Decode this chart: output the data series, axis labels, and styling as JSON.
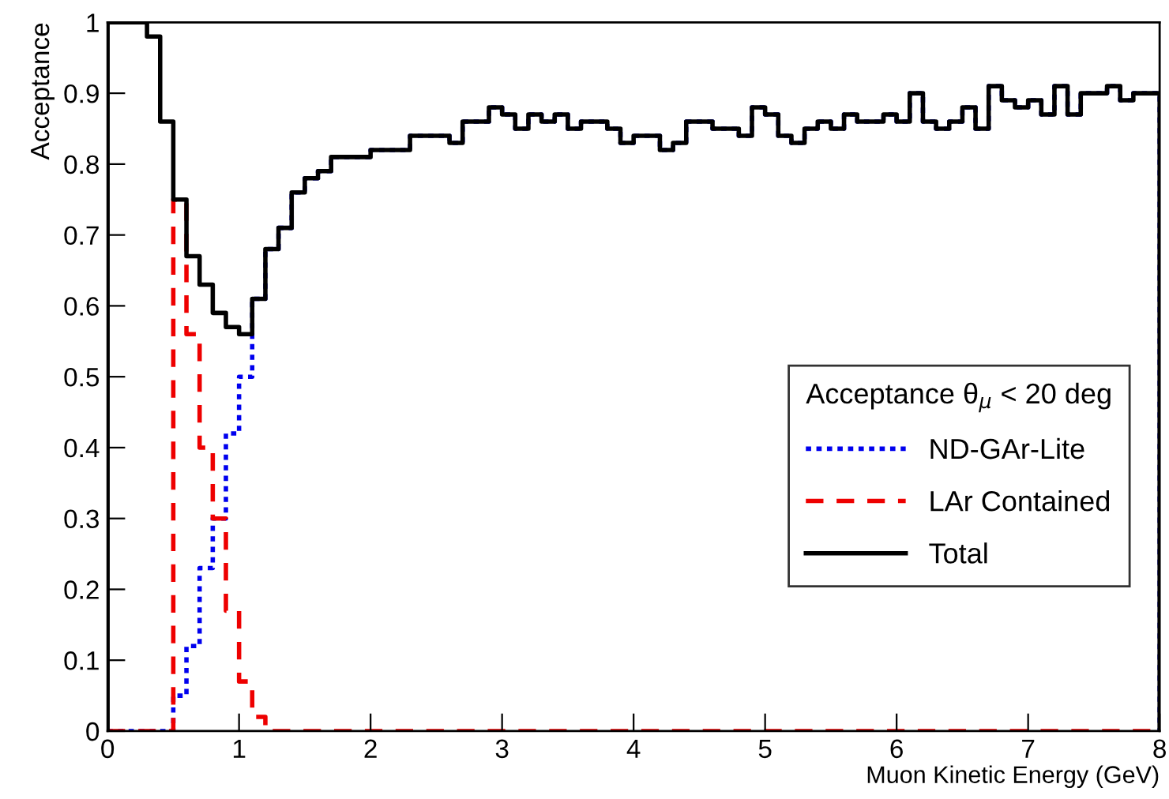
{
  "chart_data": {
    "type": "histogram",
    "xlabel": "Muon Kinetic Energy (GeV)",
    "ylabel": "Acceptance",
    "legend_title": "Acceptance θ$_{μ}$ < 20 deg",
    "bins": [
      0,
      0.1,
      0.2,
      0.3,
      0.4,
      0.5,
      0.6,
      0.7,
      0.8,
      0.9,
      1.0,
      1.1,
      1.2,
      1.3,
      1.4,
      1.5,
      1.6,
      1.7,
      1.8,
      1.9,
      2.0,
      2.1,
      2.2,
      2.3,
      2.4,
      2.5,
      2.6,
      2.7,
      2.8,
      2.9,
      3.0,
      3.1,
      3.2,
      3.3,
      3.4,
      3.5,
      3.6,
      3.7,
      3.8,
      3.9,
      4.0,
      4.1,
      4.2,
      4.3,
      4.4,
      4.5,
      4.6,
      4.7,
      4.8,
      4.9,
      5.0,
      5.1,
      5.2,
      5.3,
      5.4,
      5.5,
      5.6,
      5.7,
      5.8,
      5.9,
      6.0,
      6.1,
      6.2,
      6.3,
      6.4,
      6.5,
      6.6,
      6.7,
      6.8,
      6.9,
      7.0,
      7.1,
      7.2,
      7.3,
      7.4,
      7.5,
      7.6,
      7.7,
      7.8,
      7.9,
      8.0
    ],
    "series": [
      {
        "name": "ND-GAr-Lite",
        "color": "#0000ee",
        "line_style": "dotted",
        "values": [
          0,
          0,
          0,
          0,
          0,
          0.05,
          0.12,
          0.23,
          0.3,
          0.42,
          0.5,
          0.61,
          0.68,
          0.71,
          0.76,
          0.78,
          0.79,
          0.81,
          0.81,
          0.81,
          0.82,
          0.82,
          0.82,
          0.84,
          0.84,
          0.84,
          0.83,
          0.86,
          0.86,
          0.88,
          0.87,
          0.85,
          0.87,
          0.86,
          0.87,
          0.85,
          0.86,
          0.86,
          0.85,
          0.83,
          0.84,
          0.84,
          0.82,
          0.83,
          0.86,
          0.86,
          0.85,
          0.85,
          0.84,
          0.88,
          0.87,
          0.84,
          0.83,
          0.85,
          0.86,
          0.85,
          0.87,
          0.86,
          0.86,
          0.87,
          0.86,
          0.9,
          0.86,
          0.85,
          0.86,
          0.88,
          0.85,
          0.91,
          0.89,
          0.88,
          0.89,
          0.87,
          0.91,
          0.87,
          0.9,
          0.9,
          0.91,
          0.89,
          0.9,
          0.9
        ]
      },
      {
        "name": "LAr Contained",
        "color": "#ee0000",
        "line_style": "dashed",
        "values": [
          0,
          0,
          0,
          0,
          0,
          0.75,
          0.56,
          0.4,
          0.3,
          0.17,
          0.07,
          0.02,
          0,
          0,
          0,
          0,
          0,
          0,
          0,
          0,
          0,
          0,
          0,
          0,
          0,
          0,
          0,
          0,
          0,
          0,
          0,
          0,
          0,
          0,
          0,
          0,
          0,
          0,
          0,
          0,
          0,
          0,
          0,
          0,
          0,
          0,
          0,
          0,
          0,
          0,
          0,
          0,
          0,
          0,
          0,
          0,
          0,
          0,
          0,
          0,
          0,
          0,
          0,
          0,
          0,
          0,
          0,
          0,
          0,
          0,
          0,
          0,
          0,
          0,
          0,
          0,
          0,
          0,
          0,
          0
        ]
      },
      {
        "name": "Total",
        "color": "#000000",
        "line_style": "solid",
        "values": [
          1.0,
          1.0,
          1.0,
          0.98,
          0.86,
          0.75,
          0.67,
          0.63,
          0.59,
          0.57,
          0.56,
          0.61,
          0.68,
          0.71,
          0.76,
          0.78,
          0.79,
          0.81,
          0.81,
          0.81,
          0.82,
          0.82,
          0.82,
          0.84,
          0.84,
          0.84,
          0.83,
          0.86,
          0.86,
          0.88,
          0.87,
          0.85,
          0.87,
          0.86,
          0.87,
          0.85,
          0.86,
          0.86,
          0.85,
          0.83,
          0.84,
          0.84,
          0.82,
          0.83,
          0.86,
          0.86,
          0.85,
          0.85,
          0.84,
          0.88,
          0.87,
          0.84,
          0.83,
          0.85,
          0.86,
          0.85,
          0.87,
          0.86,
          0.86,
          0.87,
          0.86,
          0.9,
          0.86,
          0.85,
          0.86,
          0.88,
          0.85,
          0.91,
          0.89,
          0.88,
          0.89,
          0.87,
          0.91,
          0.87,
          0.9,
          0.9,
          0.91,
          0.89,
          0.9,
          0.9
        ]
      }
    ],
    "xlim": [
      0,
      8
    ],
    "ylim": [
      0,
      1
    ],
    "xticks": [
      0,
      1,
      2,
      3,
      4,
      5,
      6,
      7,
      8
    ],
    "yticks": [
      0,
      {
        "value": 0.1,
        "label": "0.1"
      },
      {
        "value": 0.2,
        "label": "0.2"
      },
      {
        "value": 0.3,
        "label": "0.3"
      },
      {
        "value": 0.4,
        "label": "0.4"
      },
      {
        "value": 0.5,
        "label": "0.5"
      },
      {
        "value": 0.6,
        "label": "0.6"
      },
      {
        "value": 0.7,
        "label": "0.7"
      },
      {
        "value": 0.8,
        "label": "0.8"
      },
      {
        "value": 0.9,
        "label": "0.9"
      },
      1
    ],
    "grid": false,
    "legend": "center right"
  }
}
